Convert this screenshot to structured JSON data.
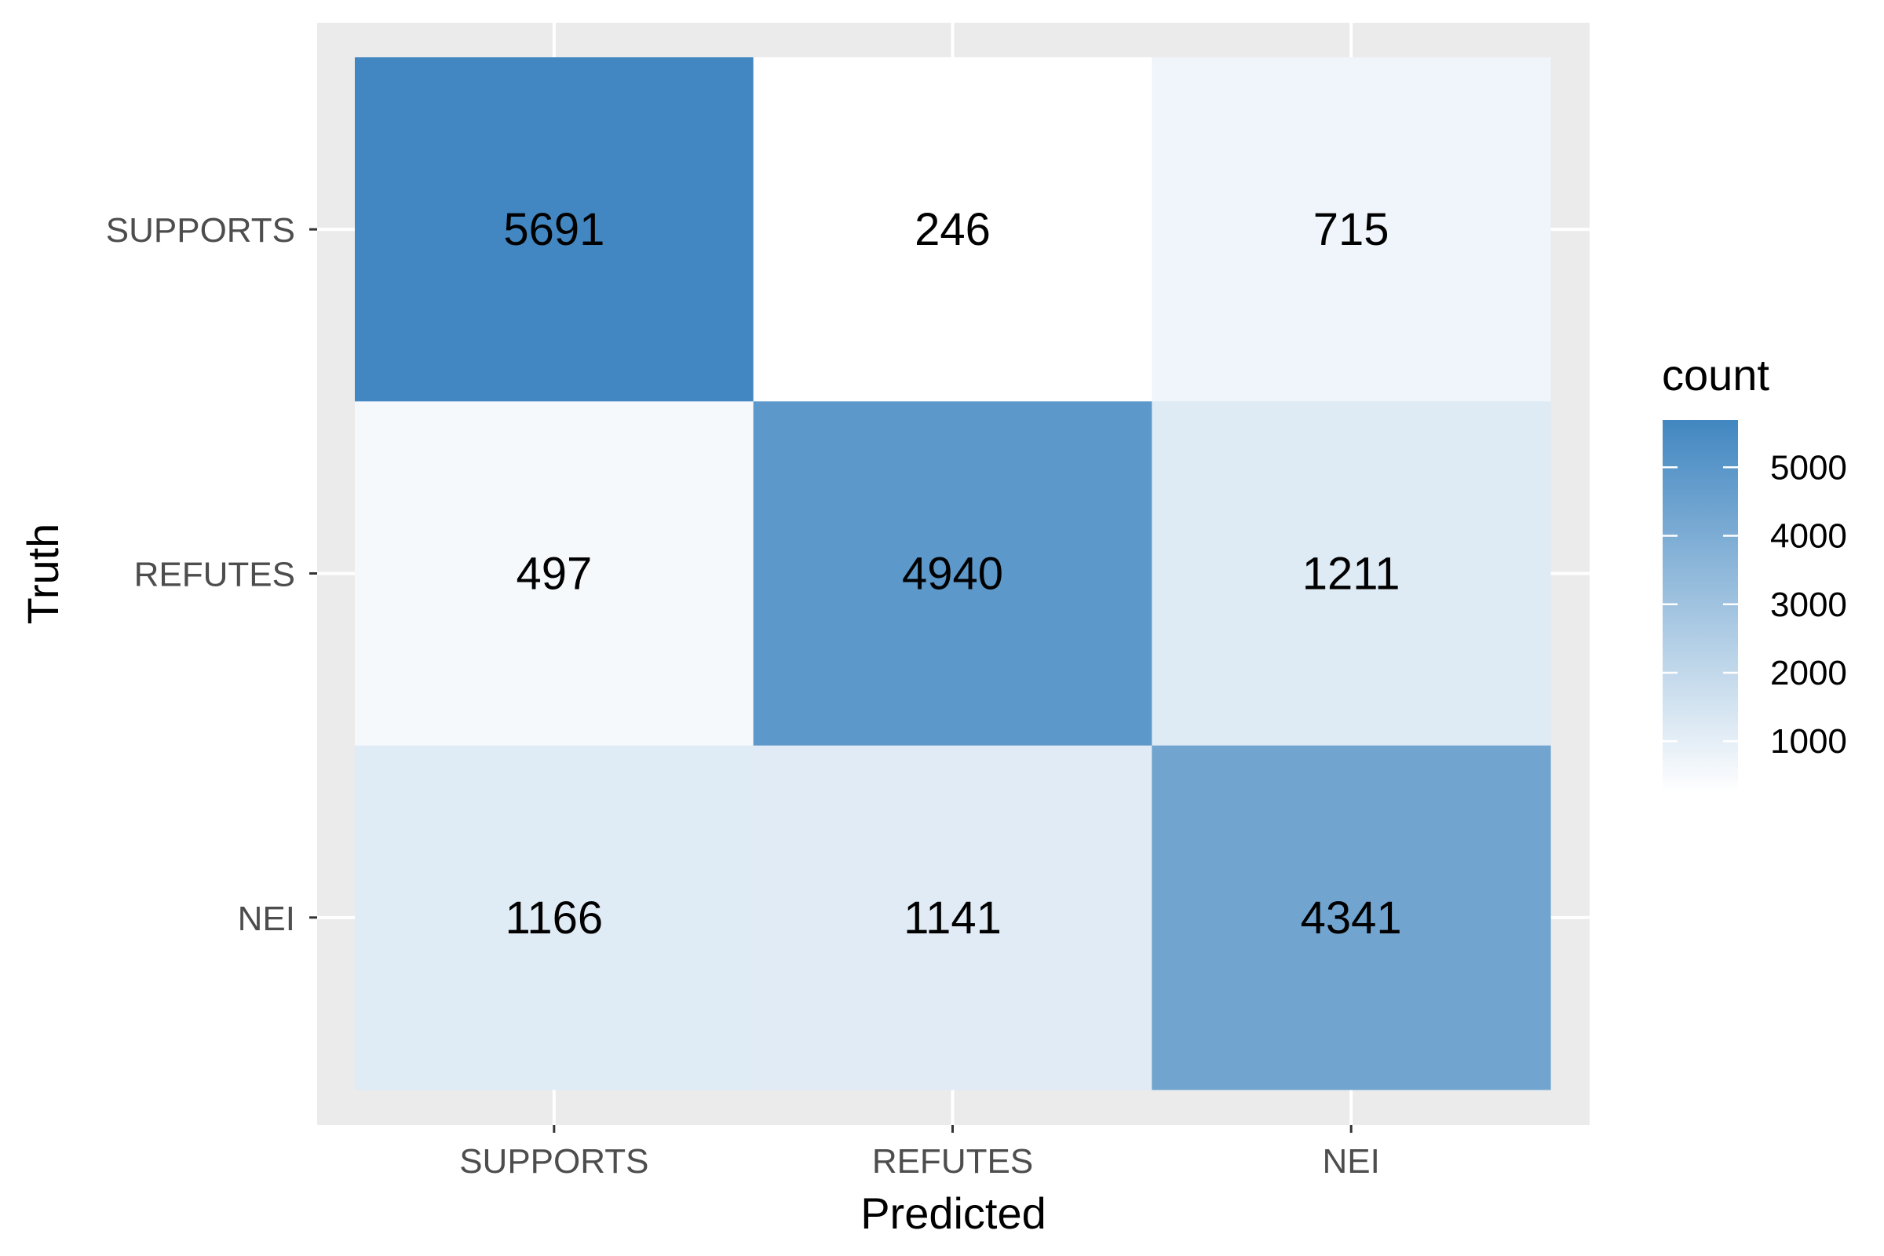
{
  "chart_data": {
    "type": "heatmap",
    "xlabel": "Predicted",
    "ylabel": "Truth",
    "x_categories": [
      "SUPPORTS",
      "REFUTES",
      "NEI"
    ],
    "y_categories": [
      "SUPPORTS",
      "REFUTES",
      "NEI"
    ],
    "values": [
      [
        5691,
        246,
        715
      ],
      [
        497,
        4940,
        1211
      ],
      [
        1166,
        1141,
        4341
      ]
    ],
    "legend": {
      "title": "count",
      "ticks": [
        1000,
        2000,
        3000,
        4000,
        5000
      ],
      "position": "right"
    },
    "color_scale": {
      "low": "#ffffff",
      "high": "#4287c1"
    },
    "panel_background": "#ebebeb",
    "grid": true
  }
}
